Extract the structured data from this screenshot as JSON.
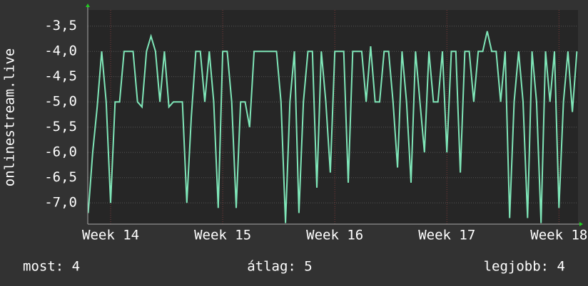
{
  "chart_data": {
    "type": "line",
    "y_label": "onlinestream.live",
    "color": "#7fe6b8",
    "x": [
      13.8,
      13.84,
      13.88,
      13.92,
      13.96,
      14,
      14.04,
      14.08,
      14.12,
      14.16,
      14.2,
      14.24,
      14.28,
      14.32,
      14.36,
      14.4,
      14.44,
      14.48,
      14.52,
      14.56,
      14.6,
      14.64,
      14.68,
      14.72,
      14.76,
      14.8,
      14.84,
      14.88,
      14.92,
      14.96,
      15,
      15.04,
      15.08,
      15.12,
      15.16,
      15.2,
      15.24,
      15.28,
      15.32,
      15.36,
      15.4,
      15.44,
      15.48,
      15.52,
      15.56,
      15.6,
      15.64,
      15.68,
      15.72,
      15.76,
      15.8,
      15.84,
      15.88,
      15.92,
      15.96,
      16,
      16.04,
      16.08,
      16.12,
      16.16,
      16.2,
      16.24,
      16.28,
      16.32,
      16.36,
      16.4,
      16.44,
      16.48,
      16.52,
      16.56,
      16.6,
      16.64,
      16.68,
      16.72,
      16.76,
      16.8,
      16.84,
      16.88,
      16.92,
      16.96,
      17,
      17.04,
      17.08,
      17.12,
      17.16,
      17.2,
      17.24,
      17.28,
      17.32,
      17.36,
      17.4,
      17.44,
      17.48,
      17.52,
      17.56,
      17.6,
      17.64,
      17.68,
      17.72,
      17.76,
      17.8,
      17.84,
      17.88,
      17.92,
      17.96,
      18,
      18.04,
      18.08,
      18.12,
      18.16
    ],
    "values": [
      -7.2,
      -6.0,
      -5.1,
      -4.0,
      -5.0,
      -7.0,
      -5.0,
      -5.0,
      -4.0,
      -4.0,
      -4.0,
      -5.0,
      -5.1,
      -4.0,
      -3.7,
      -4.0,
      -5.0,
      -4.0,
      -5.1,
      -5.0,
      -5.0,
      -5.0,
      -7.0,
      -5.3,
      -4.0,
      -4.0,
      -5.0,
      -4.0,
      -5.0,
      -7.1,
      -4.0,
      -4.0,
      -5.0,
      -7.1,
      -5.0,
      -5.0,
      -5.5,
      -4.0,
      -4.0,
      -4.0,
      -4.0,
      -4.0,
      -4.0,
      -5.0,
      -7.4,
      -5.0,
      -4.0,
      -7.2,
      -5.0,
      -4.0,
      -4.0,
      -6.7,
      -4.0,
      -5.0,
      -6.4,
      -4.0,
      -4.0,
      -4.0,
      -6.6,
      -4.0,
      -4.0,
      -4.0,
      -5.0,
      -3.9,
      -5.0,
      -5.0,
      -4.0,
      -4.0,
      -5.0,
      -6.3,
      -4.0,
      -5.0,
      -6.6,
      -4.0,
      -5.0,
      -6.0,
      -4.0,
      -5.0,
      -5.0,
      -4.0,
      -6.0,
      -4.0,
      -4.0,
      -6.4,
      -4.0,
      -4.0,
      -5.0,
      -4.0,
      -4.0,
      -3.6,
      -4.0,
      -4.0,
      -5.0,
      -4.0,
      -7.3,
      -5.0,
      -4.0,
      -5.0,
      -7.3,
      -4.0,
      -5.0,
      -7.4,
      -4.0,
      -5.0,
      -4.0,
      -7.1,
      -5.0,
      -4.0,
      -5.2,
      -4.0
    ],
    "xlim": [
      13.796,
      18.17
    ],
    "xticks": [
      {
        "value": 14,
        "label": "Week 14"
      },
      {
        "value": 15,
        "label": "Week 15"
      },
      {
        "value": 16,
        "label": "Week 16"
      },
      {
        "value": 17,
        "label": "Week 17"
      },
      {
        "value": 18,
        "label": "Week 18"
      }
    ],
    "ylim": [
      -7.42,
      -3.18
    ],
    "yticks": [
      {
        "value": -3.5,
        "label": "-3,5"
      },
      {
        "value": -4,
        "label": "-4,0"
      },
      {
        "value": -4.5,
        "label": "-4,5"
      },
      {
        "value": -5,
        "label": "-5,0"
      },
      {
        "value": -5.5,
        "label": "-5,5"
      },
      {
        "value": -6,
        "label": "-6,0"
      },
      {
        "value": -6.5,
        "label": "-6,5"
      },
      {
        "value": -7,
        "label": "-7,0"
      }
    ],
    "grid": true
  },
  "footer": {
    "current": "most: 4",
    "average": "átlag: 5",
    "best": "legjobb: 4"
  }
}
